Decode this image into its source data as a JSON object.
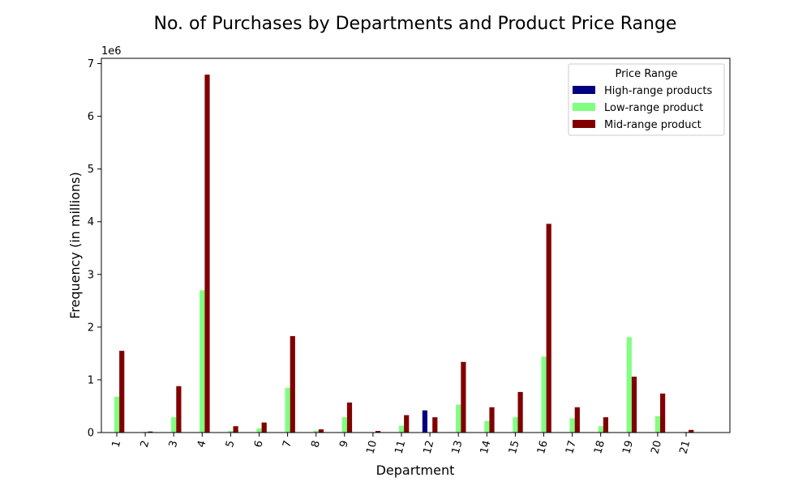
{
  "chart_data": {
    "type": "bar",
    "title": "No. of Purchases by Departments and Product Price Range",
    "xlabel": "Department",
    "ylabel": "Frequency (in millions)",
    "y_scale_label": "1e6",
    "y_unit": 1000000,
    "ylim": [
      0,
      7100000
    ],
    "yticks": [
      0,
      1000000,
      2000000,
      3000000,
      4000000,
      5000000,
      6000000,
      7000000
    ],
    "ytick_labels": [
      "0",
      "1",
      "2",
      "3",
      "4",
      "5",
      "6",
      "7"
    ],
    "categories": [
      "1",
      "2",
      "3",
      "4",
      "5",
      "6",
      "7",
      "8",
      "9",
      "10",
      "11",
      "12",
      "13",
      "14",
      "15",
      "16",
      "17",
      "18",
      "19",
      "20",
      "21"
    ],
    "grid": false,
    "legend": {
      "title": "Price Range",
      "position": "top-right"
    },
    "series": [
      {
        "name": "High-range products",
        "color": "#000080",
        "values": [
          0,
          0,
          0,
          0,
          0,
          0,
          0,
          0,
          0,
          0,
          0,
          420000,
          0,
          0,
          0,
          0,
          0,
          0,
          0,
          0,
          0
        ]
      },
      {
        "name": "Low-range product",
        "color": "#80ff80",
        "values": [
          680000,
          15000,
          290000,
          2700000,
          30000,
          80000,
          850000,
          35000,
          290000,
          5000,
          130000,
          0,
          530000,
          220000,
          290000,
          1440000,
          270000,
          120000,
          1810000,
          310000,
          15000
        ]
      },
      {
        "name": "Mid-range product",
        "color": "#800000",
        "values": [
          1550000,
          20000,
          880000,
          6790000,
          120000,
          190000,
          1830000,
          60000,
          570000,
          30000,
          330000,
          290000,
          1340000,
          480000,
          770000,
          3960000,
          480000,
          290000,
          1060000,
          740000,
          50000
        ]
      }
    ]
  }
}
